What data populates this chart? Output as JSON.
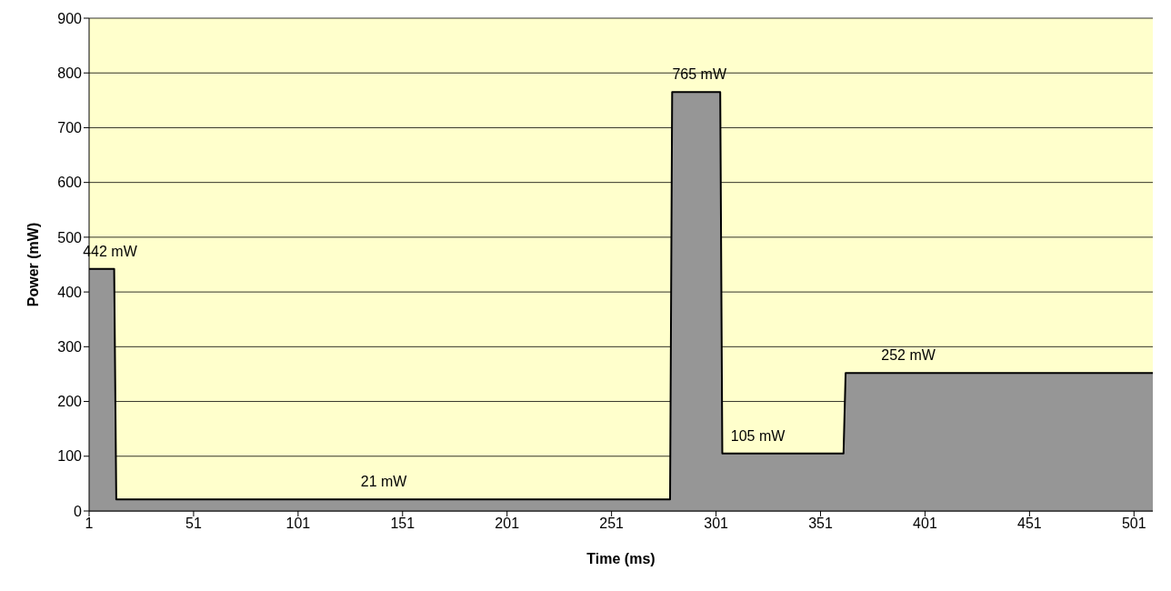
{
  "chart_data": {
    "type": "area",
    "xlabel": "Time (ms)",
    "ylabel": "Power (mW)",
    "x": [
      1,
      13,
      14,
      279,
      280,
      303,
      304,
      362,
      363,
      510
    ],
    "series": [
      {
        "color": "#969696",
        "values": [
          442,
          442,
          21,
          21,
          765,
          765,
          105,
          105,
          252,
          252
        ]
      }
    ],
    "xlim": [
      1,
      510
    ],
    "xticks": [
      1,
      51,
      101,
      151,
      201,
      251,
      301,
      351,
      401,
      451,
      501
    ],
    "ylim": [
      0,
      900
    ],
    "yticks": [
      0,
      100,
      200,
      300,
      400,
      500,
      600,
      700,
      800,
      900
    ],
    "grid": "y",
    "legend": false,
    "annotations": [
      {
        "text": "442 mW",
        "x": 11,
        "y": 442
      },
      {
        "text": "21 mW",
        "x": 142,
        "y": 21
      },
      {
        "text": "765 mW",
        "x": 293,
        "y": 765
      },
      {
        "text": "105 mW",
        "x": 321,
        "y": 105
      },
      {
        "text": "252 mW",
        "x": 393,
        "y": 252
      }
    ]
  }
}
